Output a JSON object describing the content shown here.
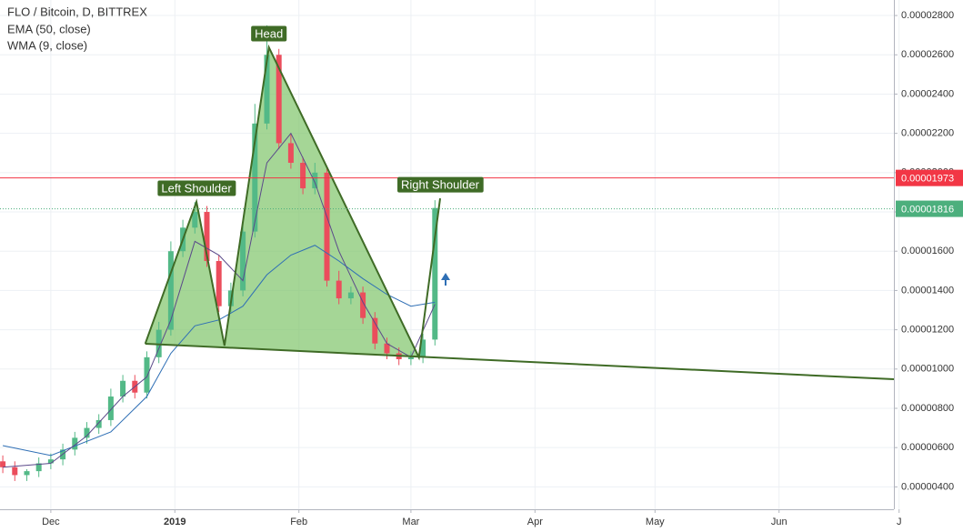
{
  "chart_data": {
    "type": "candlestick",
    "title": "FLO / Bitcoin, D, BITTREX",
    "x": [
      -12,
      -9,
      -6,
      -3,
      0,
      3,
      6,
      9,
      12,
      15,
      18,
      21,
      24,
      27,
      30,
      33,
      36,
      39,
      42,
      45,
      48,
      51,
      54,
      57,
      60,
      63,
      66,
      69,
      72,
      75,
      78,
      81,
      84,
      87,
      90,
      93,
      96
    ],
    "open": [
      5.3e-06,
      5e-06,
      4.6e-06,
      4.8e-06,
      5.2e-06,
      5.4e-06,
      5.9e-06,
      6.5e-06,
      7e-06,
      7.4e-06,
      8.6e-06,
      9.4e-06,
      8.8e-06,
      1.06e-05,
      1.2e-05,
      1.6e-05,
      1.72e-05,
      1.8e-05,
      1.55e-05,
      1.32e-05,
      1.4e-05,
      1.7e-05,
      2.25e-05,
      2.6e-05,
      2.15e-05,
      2.05e-05,
      1.92e-05,
      2e-05,
      1.45e-05,
      1.36e-05,
      1.39e-05,
      1.26e-05,
      1.13e-05,
      1.08e-05,
      1.05e-05,
      1.06e-05,
      1.15e-05
    ],
    "high": [
      5.6e-06,
      5.3e-06,
      4.9e-06,
      5.5e-06,
      5.7e-06,
      6.2e-06,
      6.8e-06,
      7.3e-06,
      7.7e-06,
      9e-06,
      9.7e-06,
      9.7e-06,
      1.09e-05,
      1.24e-05,
      1.65e-05,
      1.76e-05,
      1.85e-05,
      1.83e-05,
      1.58e-05,
      1.44e-05,
      1.74e-05,
      2.35e-05,
      2.75e-05,
      2.63e-05,
      2.2e-05,
      2.08e-05,
      2.05e-05,
      2.03e-05,
      1.5e-05,
      1.42e-05,
      1.42e-05,
      1.29e-05,
      1.16e-05,
      1.11e-05,
      1.09e-05,
      1.18e-05,
      1.86e-05
    ],
    "low": [
      4.7e-06,
      4.3e-06,
      4.3e-06,
      4.5e-06,
      4.9e-06,
      5.1e-06,
      5.6e-06,
      6.2e-06,
      6.7e-06,
      7.1e-06,
      8.3e-06,
      8.5e-06,
      8.5e-06,
      1.03e-05,
      1.17e-05,
      1.57e-05,
      1.69e-05,
      1.52e-05,
      1.29e-05,
      1.29e-05,
      1.37e-05,
      1.67e-05,
      2.22e-05,
      2.12e-05,
      2.02e-05,
      1.89e-05,
      1.89e-05,
      1.42e-05,
      1.33e-05,
      1.33e-05,
      1.23e-05,
      1.1e-05,
      1.05e-05,
      1.02e-05,
      1.02e-05,
      1.03e-05,
      1.12e-05
    ],
    "close": [
      5e-06,
      4.6e-06,
      4.8e-06,
      5.2e-06,
      5.4e-06,
      5.9e-06,
      6.5e-06,
      7e-06,
      7.4e-06,
      8.6e-06,
      9.4e-06,
      8.8e-06,
      1.06e-05,
      1.2e-05,
      1.6e-05,
      1.72e-05,
      1.8e-05,
      1.55e-05,
      1.32e-05,
      1.4e-05,
      1.7e-05,
      2.25e-05,
      2.6e-05,
      2.15e-05,
      2.05e-05,
      1.92e-05,
      2e-05,
      1.45e-05,
      1.36e-05,
      1.39e-05,
      1.26e-05,
      1.13e-05,
      1.08e-05,
      1.05e-05,
      1.06e-05,
      1.15e-05,
      1.82e-05
    ],
    "up_color": "#53b987",
    "down_color": "#eb4d5c",
    "series": [
      {
        "name": "EMA (50, close)",
        "color": "#2f6fb5",
        "x": [
          -12,
          0,
          15,
          24,
          30,
          36,
          42,
          48,
          54,
          60,
          66,
          72,
          78,
          84,
          90,
          96
        ],
        "values": [
          6.1e-06,
          5.6e-06,
          6.8e-06,
          8.6e-06,
          1.08e-05,
          1.22e-05,
          1.25e-05,
          1.32e-05,
          1.48e-05,
          1.58e-05,
          1.63e-05,
          1.55e-05,
          1.46e-05,
          1.38e-05,
          1.32e-05,
          1.34e-05
        ]
      },
      {
        "name": "WMA (9, close)",
        "color": "#5b4a8a",
        "x": [
          -12,
          0,
          9,
          18,
          24,
          30,
          36,
          42,
          48,
          54,
          60,
          66,
          72,
          78,
          84,
          90,
          96
        ],
        "values": [
          5e-06,
          5.2e-06,
          6.6e-06,
          8.6e-06,
          9.6e-06,
          1.25e-05,
          1.65e-05,
          1.58e-05,
          1.45e-05,
          2.05e-05,
          2.2e-05,
          1.95e-05,
          1.6e-05,
          1.34e-05,
          1.13e-05,
          1.06e-05,
          1.33e-05
        ]
      }
    ],
    "pattern": {
      "color": "#3f6b26",
      "fill": "#7fc46a",
      "x": [
        23.6,
        36.4,
        43.4,
        54.5,
        92,
        97.3
      ],
      "y": [
        1.129e-05,
        1.851e-05,
        1.119e-05,
        2.638e-05,
        1.059e-05,
        1.869e-05
      ]
    },
    "neckline": {
      "x": [
        23.6,
        210.7
      ],
      "y": [
        1.129e-05,
        9.48e-06
      ]
    },
    "annotations": [
      {
        "text": "Left Shoulder",
        "x": 36.4,
        "y": 1.851e-05
      },
      {
        "text": "Head",
        "x": 54.5,
        "y": 2.638e-05
      },
      {
        "text": "Right Shoulder",
        "x": 97.3,
        "y": 1.869e-05
      }
    ],
    "hlines": [
      {
        "value": 1.973e-05,
        "label": "0.00001973",
        "color": "#f23645",
        "style": "solid"
      },
      {
        "value": 1.816e-05,
        "label": "0.00001816",
        "color": "#4caf7d",
        "style": "dotted"
      }
    ],
    "xlim": [
      -12.7,
      210.7
    ],
    "xticks": [
      {
        "value": 0,
        "label": "Dec"
      },
      {
        "value": 31,
        "label": "2019"
      },
      {
        "value": 62,
        "label": "Feb"
      },
      {
        "value": 90,
        "label": "Mar"
      },
      {
        "value": 121,
        "label": "Apr"
      },
      {
        "value": 151,
        "label": "May"
      },
      {
        "value": 182,
        "label": "Jun"
      },
      {
        "value": 212,
        "label": "J"
      }
    ],
    "ylim": [
      2.86e-06,
      2.879e-05
    ],
    "yticks": [
      {
        "value": 4e-06,
        "label": "0.00000400"
      },
      {
        "value": 6e-06,
        "label": "0.00000600"
      },
      {
        "value": 8e-06,
        "label": "0.00000800"
      },
      {
        "value": 1e-05,
        "label": "0.00001000"
      },
      {
        "value": 1.2e-05,
        "label": "0.00001200"
      },
      {
        "value": 1.4e-05,
        "label": "0.00001400"
      },
      {
        "value": 1.6e-05,
        "label": "0.00001600"
      },
      {
        "value": 1.8e-05,
        "label": "0.00001800"
      },
      {
        "value": 2e-05,
        "label": "0.00002000"
      },
      {
        "value": 2.2e-05,
        "label": "0.00002200"
      },
      {
        "value": 2.4e-05,
        "label": "0.00002400"
      },
      {
        "value": 2.6e-05,
        "label": "0.00002600"
      },
      {
        "value": 2.8e-05,
        "label": "0.00002800"
      }
    ],
    "grid": true
  }
}
